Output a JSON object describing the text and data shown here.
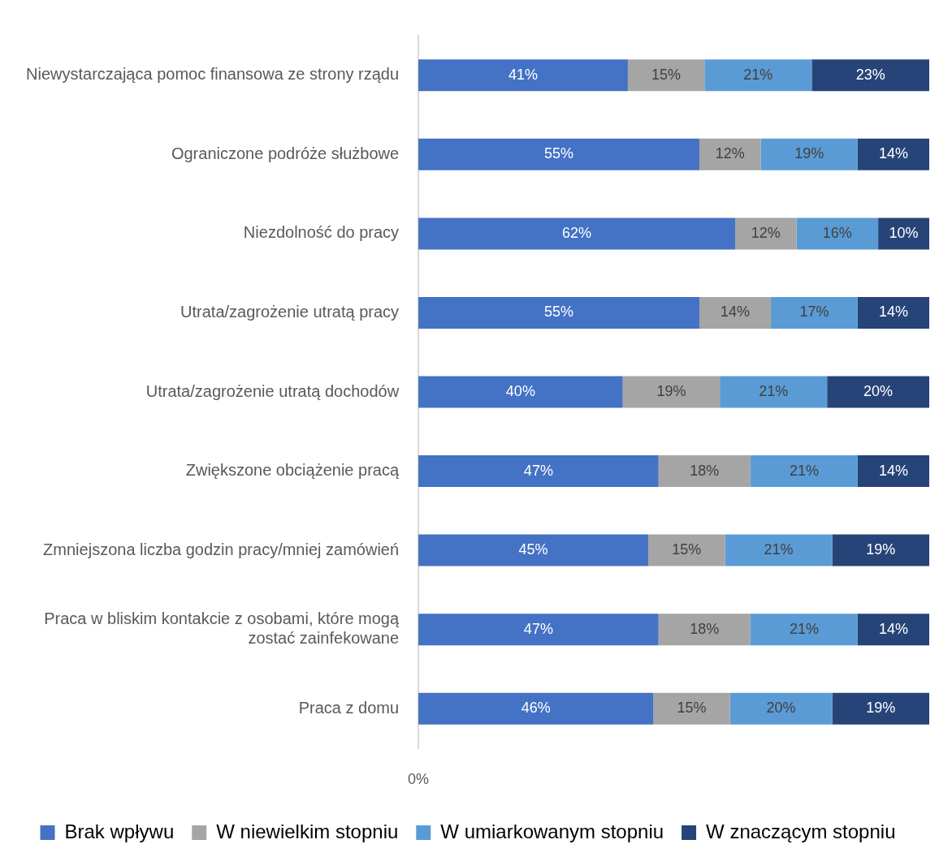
{
  "chart_data": {
    "type": "bar",
    "orientation": "horizontal",
    "stacked": true,
    "categories": [
      "Niewystarczająca pomoc finansowa ze strony rządu",
      "Ograniczone podróże służbowe",
      "Niezdolność do pracy",
      "Utrata/zagrożenie utratą pracy",
      "Utrata/zagrożenie utratą dochodów",
      "Zwiększone obciążenie pracą",
      "Zmniejszona liczba godzin pracy/mniej zamówień",
      "Praca w bliskim kontakcie z osobami, które mogą zostać zainfekowane",
      "Praca z domu"
    ],
    "series": [
      {
        "name": "Brak wpływu",
        "color": "#4472c4",
        "values": [
          41,
          55,
          62,
          55,
          40,
          47,
          45,
          47,
          46
        ],
        "value_labels": [
          "41%",
          "55%",
          "62%",
          "55%",
          "40%",
          "47%",
          "45%",
          "47%",
          "46%"
        ]
      },
      {
        "name": "W niewielkim stopniu",
        "color": "#a5a5a5",
        "values": [
          15,
          12,
          12,
          14,
          19,
          18,
          15,
          18,
          15
        ],
        "value_labels": [
          "15%",
          "12%",
          "12%",
          "14%",
          "19%",
          "18%",
          "15%",
          "18%",
          "15%"
        ]
      },
      {
        "name": "W umiarkowanym stopniu",
        "color": "#5b9bd5",
        "values": [
          21,
          19,
          16,
          17,
          21,
          21,
          21,
          21,
          20
        ],
        "value_labels": [
          "21%",
          "19%",
          "16%",
          "17%",
          "21%",
          "21%",
          "21%",
          "21%",
          "20%"
        ]
      },
      {
        "name": "W znaczącym stopniu",
        "color": "#264478",
        "values": [
          23,
          14,
          10,
          14,
          20,
          14,
          19,
          14,
          19
        ],
        "value_labels": [
          "23%",
          "14%",
          "10%",
          "14%",
          "20%",
          "14%",
          "19%",
          "14%",
          "19%"
        ]
      }
    ],
    "annotations": [
      "0%"
    ],
    "grid": false,
    "legend": "bottom"
  }
}
